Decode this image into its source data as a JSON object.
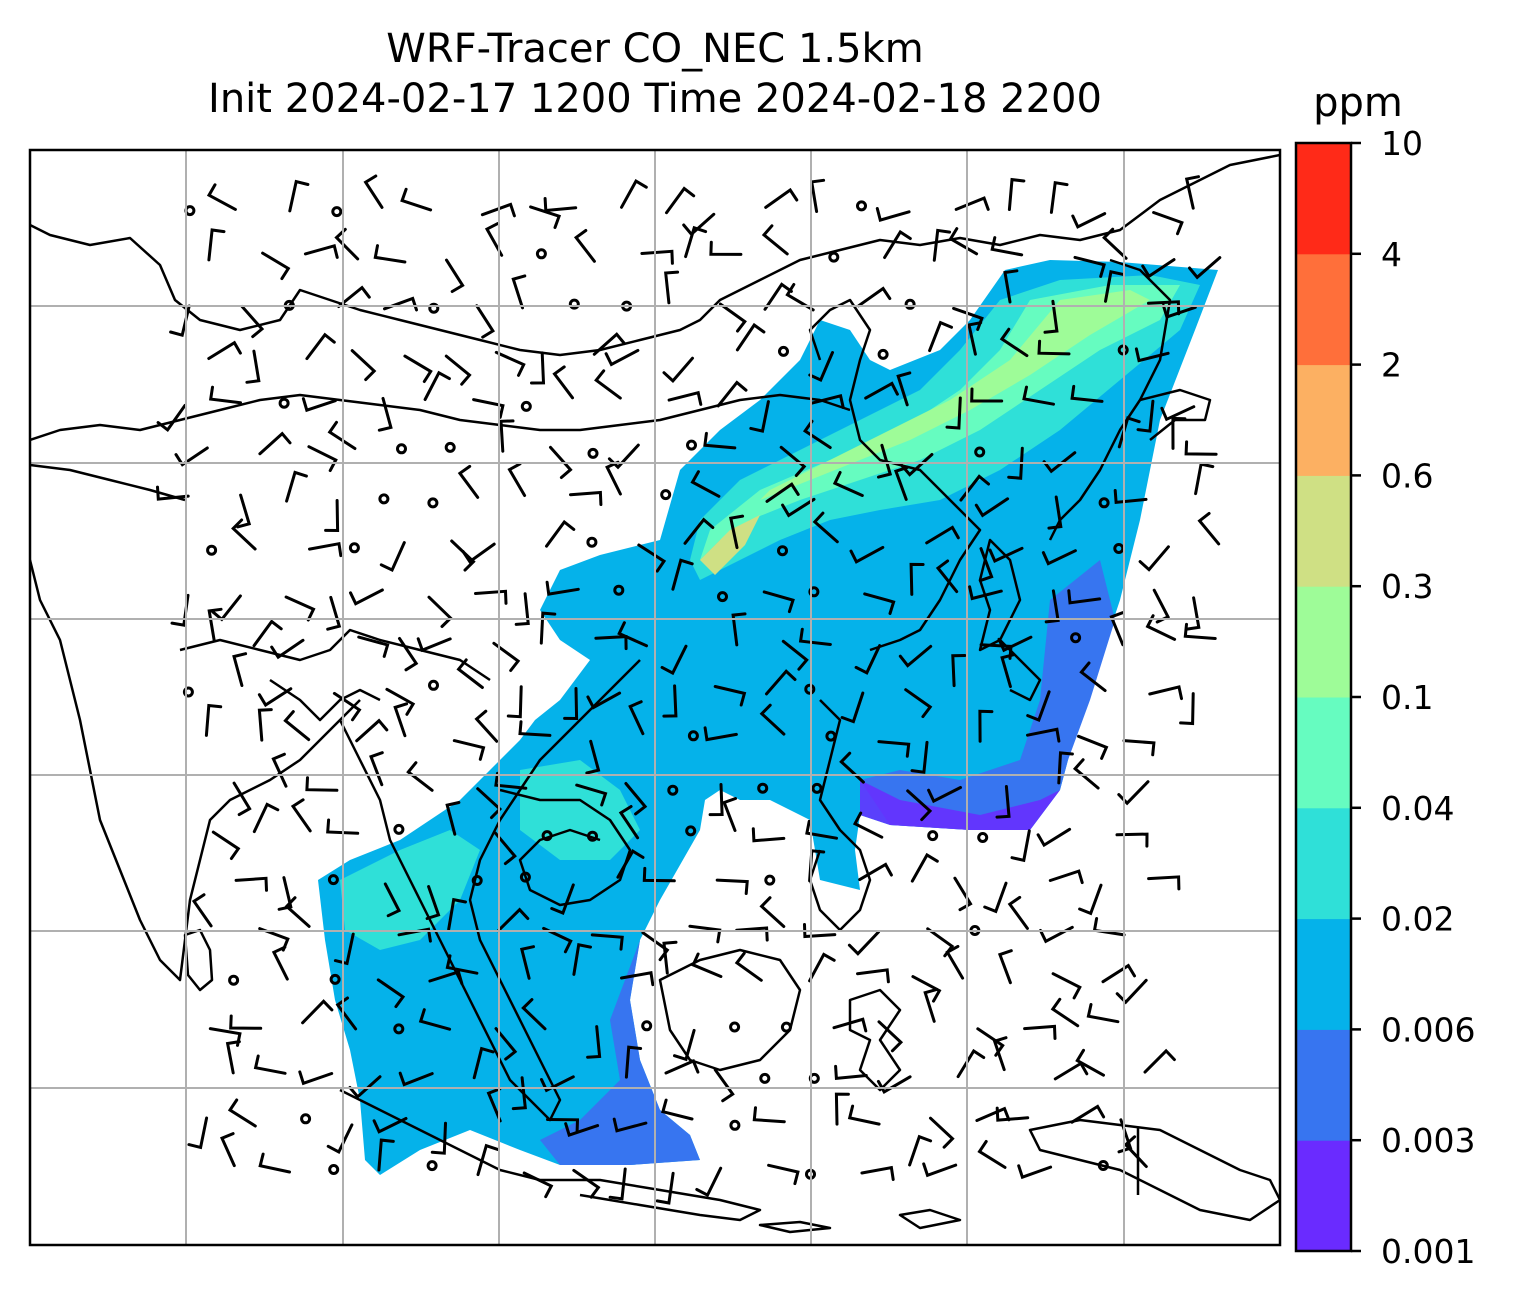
{
  "title": {
    "line1": "WRF-Tracer CO_NEC 1.5km",
    "line2": "Init 2024-02-17 1200 Time 2024-02-18 2200"
  },
  "colorbar": {
    "label": "ppm",
    "ticks": [
      "10",
      "4",
      "2",
      "0.6",
      "0.3",
      "0.1",
      "0.04",
      "0.02",
      "0.006",
      "0.003",
      "0.001"
    ],
    "colors": [
      "#6a2bff",
      "#3775f0",
      "#05b2ea",
      "#2fe0d8",
      "#66fcc0",
      "#9efc98",
      "#cfe084",
      "#fcb062",
      "#ff6f3a",
      "#ff2a18"
    ]
  },
  "map": {
    "grid": "on",
    "grid_color": "#b0b0b0",
    "features": [
      "coastlines",
      "country-borders",
      "wind-barbs",
      "tracer-field"
    ]
  }
}
